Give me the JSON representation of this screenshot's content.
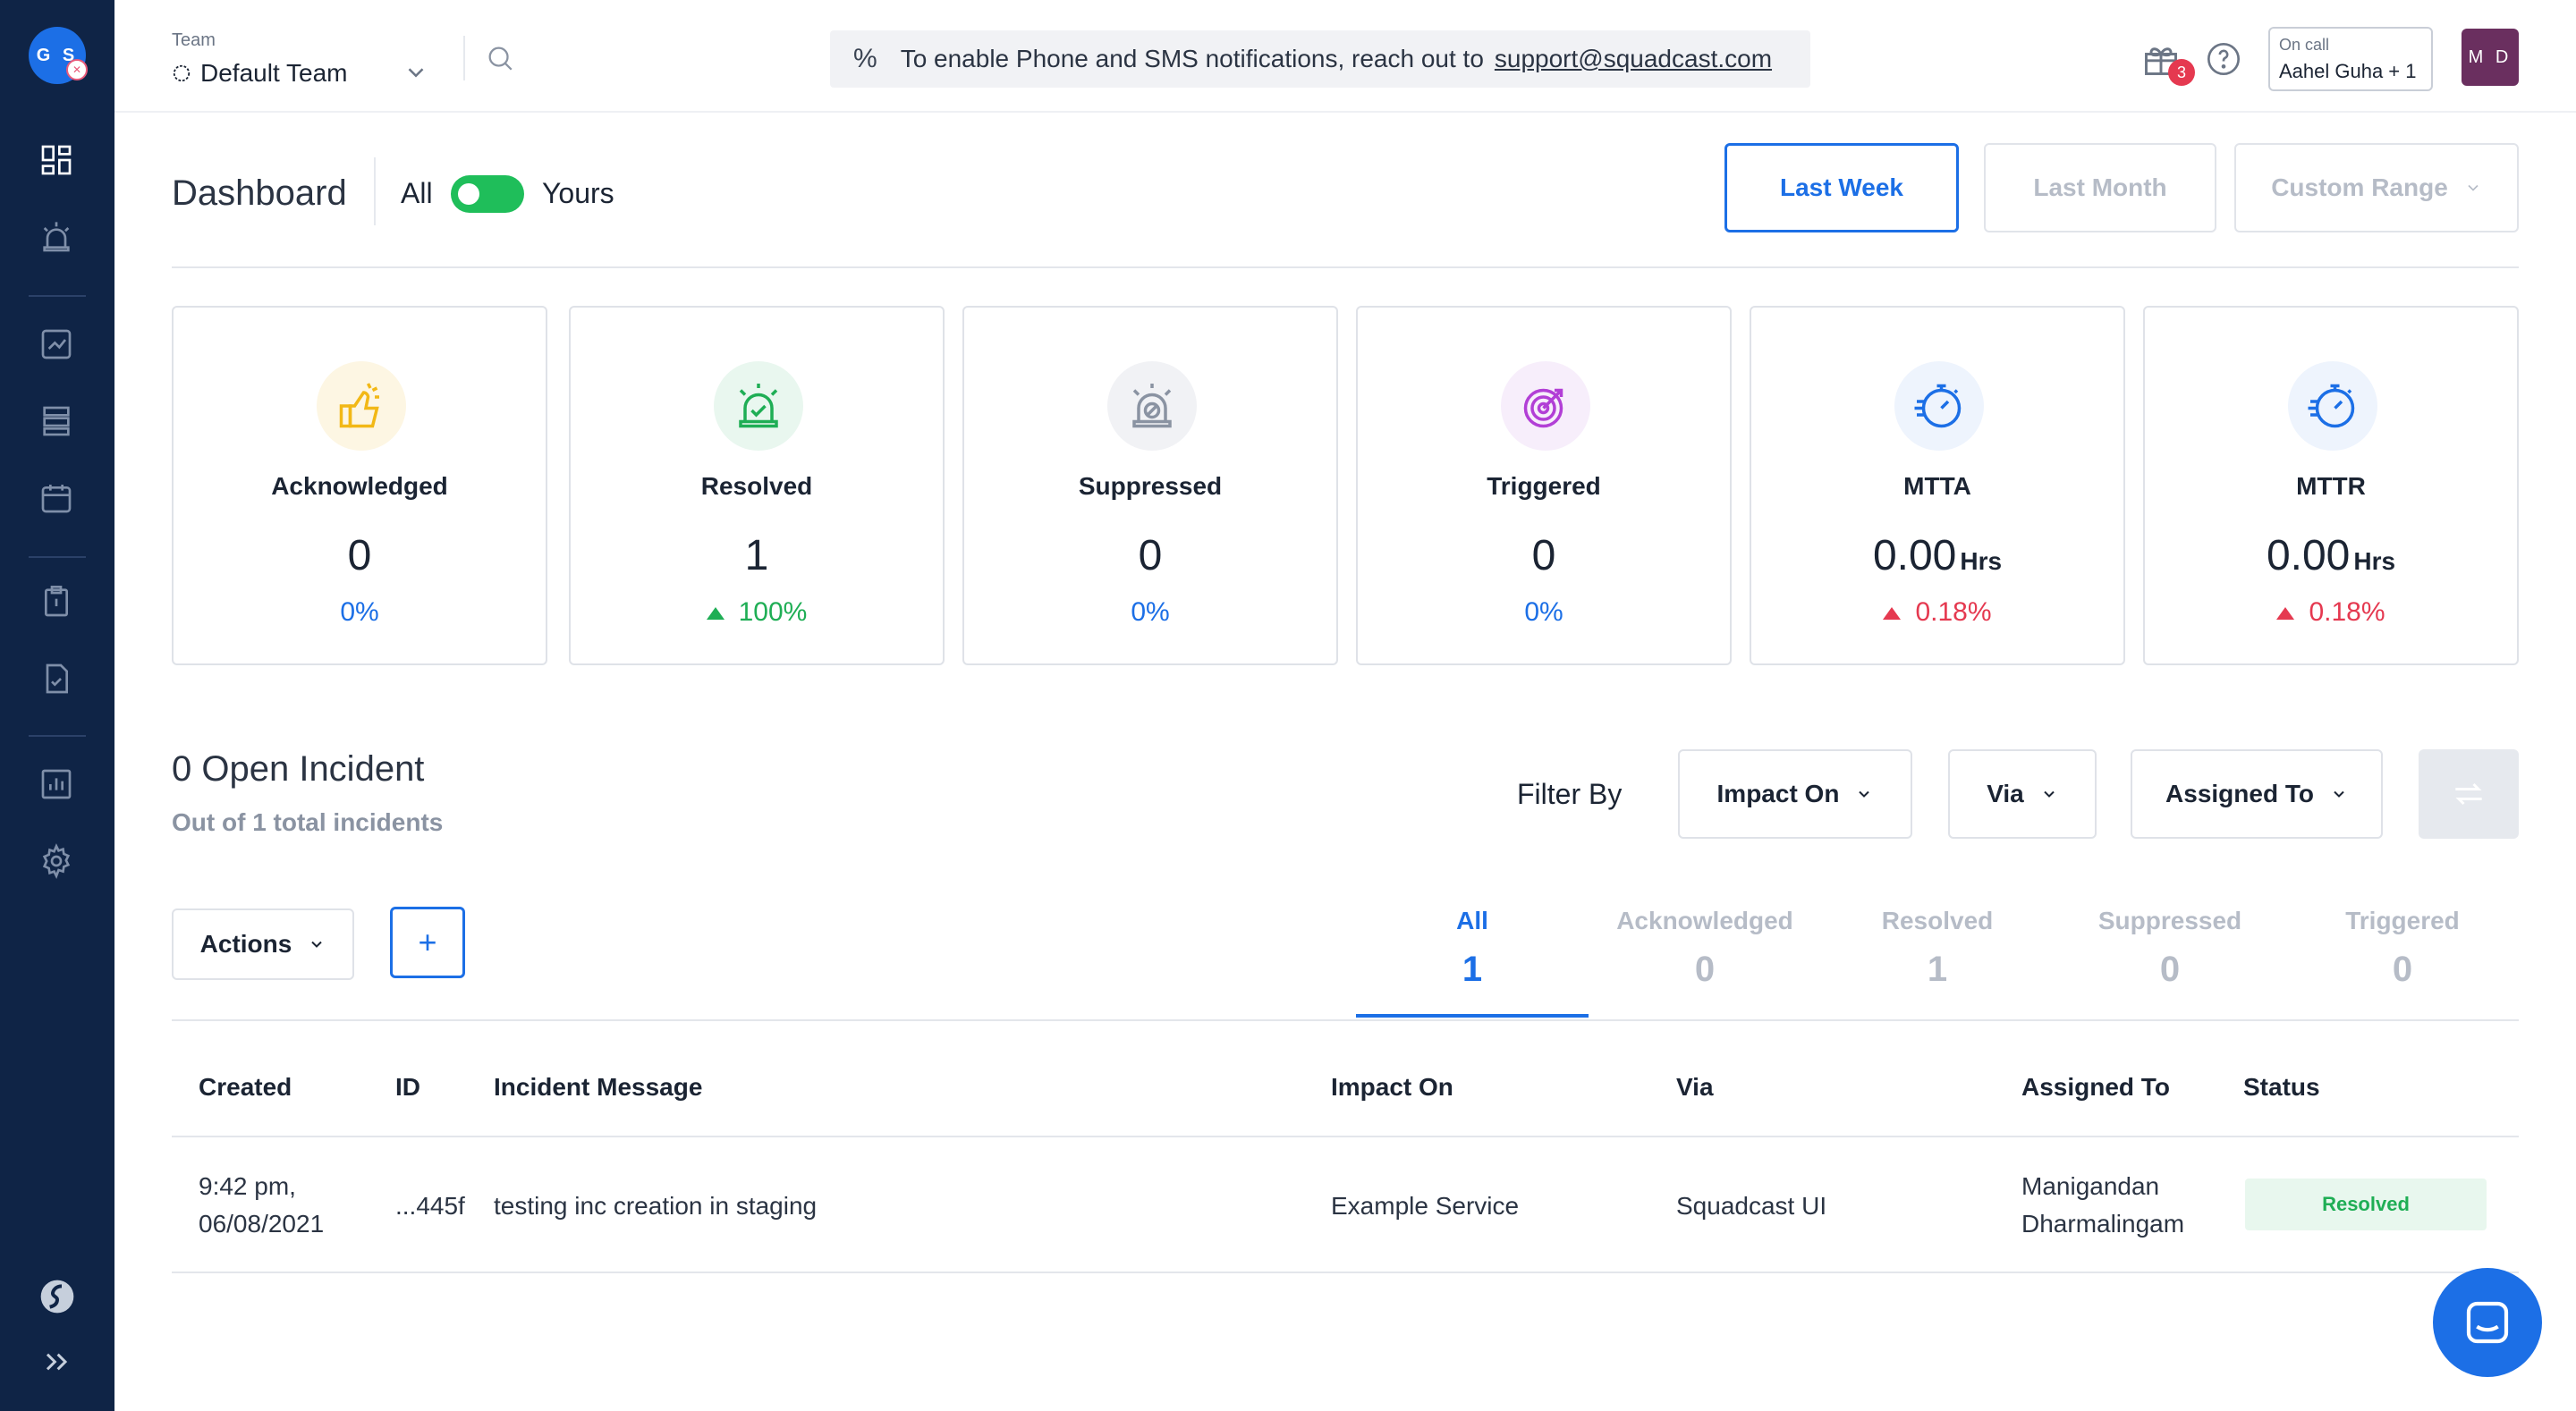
{
  "sidebar": {
    "avatar_initials": "G S"
  },
  "header": {
    "team_label": "Team",
    "team_name": "Default Team",
    "notice_text": "To enable Phone and SMS notifications, reach out to",
    "notice_link": "support@squadcast.com",
    "gift_badge_count": "3",
    "oncall_label": "On call",
    "oncall_value": "Aahel Guha + 1",
    "user_initials": "M D"
  },
  "dashboard": {
    "title": "Dashboard",
    "toggle_left": "All",
    "toggle_right": "Yours",
    "ranges": [
      "Last Week",
      "Last Month",
      "Custom Range"
    ]
  },
  "cards": [
    {
      "label": "Acknowledged",
      "value": "0",
      "unit": "",
      "pct": "0%",
      "trend": "none",
      "icon": "thumbs-up-icon",
      "icon_color": "#f2b816",
      "icon_bg": "#fdf6e3"
    },
    {
      "label": "Resolved",
      "value": "1",
      "unit": "",
      "pct": "100%",
      "trend": "up-green",
      "icon": "alarm-check-icon",
      "icon_color": "#1fae55",
      "icon_bg": "#e9f7ef"
    },
    {
      "label": "Suppressed",
      "value": "0",
      "unit": "",
      "pct": "0%",
      "trend": "none",
      "icon": "alarm-off-icon",
      "icon_color": "#8a93a2",
      "icon_bg": "#f1f2f5"
    },
    {
      "label": "Triggered",
      "value": "0",
      "unit": "",
      "pct": "0%",
      "trend": "none",
      "icon": "target-icon",
      "icon_color": "#b23fd6",
      "icon_bg": "#f7eefb"
    },
    {
      "label": "MTTA",
      "value": "0.00",
      "unit": "Hrs",
      "pct": "0.18%",
      "trend": "up-red",
      "icon": "stopwatch-icon",
      "icon_color": "#1c6fe6",
      "icon_bg": "#eef4fd"
    },
    {
      "label": "MTTR",
      "value": "0.00",
      "unit": "Hrs",
      "pct": "0.18%",
      "trend": "up-red",
      "icon": "stopwatch-icon",
      "icon_color": "#1c6fe6",
      "icon_bg": "#eef4fd"
    }
  ],
  "incidents": {
    "title": "0 Open Incident",
    "subtitle": "Out of 1 total incidents",
    "filter_label": "Filter By",
    "filters": [
      "Impact On",
      "Via",
      "Assigned To"
    ],
    "actions_label": "Actions",
    "add_label": "+",
    "tabs": [
      {
        "label": "All",
        "count": "1"
      },
      {
        "label": "Acknowledged",
        "count": "0"
      },
      {
        "label": "Resolved",
        "count": "1"
      },
      {
        "label": "Suppressed",
        "count": "0"
      },
      {
        "label": "Triggered",
        "count": "0"
      }
    ],
    "columns": [
      "Created",
      "ID",
      "Incident Message",
      "Impact On",
      "Via",
      "Assigned To",
      "Status"
    ],
    "rows": [
      {
        "created_time": "9:42 pm,",
        "created_date": "06/08/2021",
        "id": "...445f",
        "message": "testing inc creation in staging",
        "impact_on": "Example Service",
        "via": "Squadcast UI",
        "assigned_first": "Manigandan",
        "assigned_last": "Dharmalingam",
        "status": "Resolved"
      }
    ]
  },
  "colors": {
    "sidebar_bg": "#0f2446",
    "accent": "#1c6fe6",
    "success": "#1fae55",
    "danger": "#e53950"
  }
}
